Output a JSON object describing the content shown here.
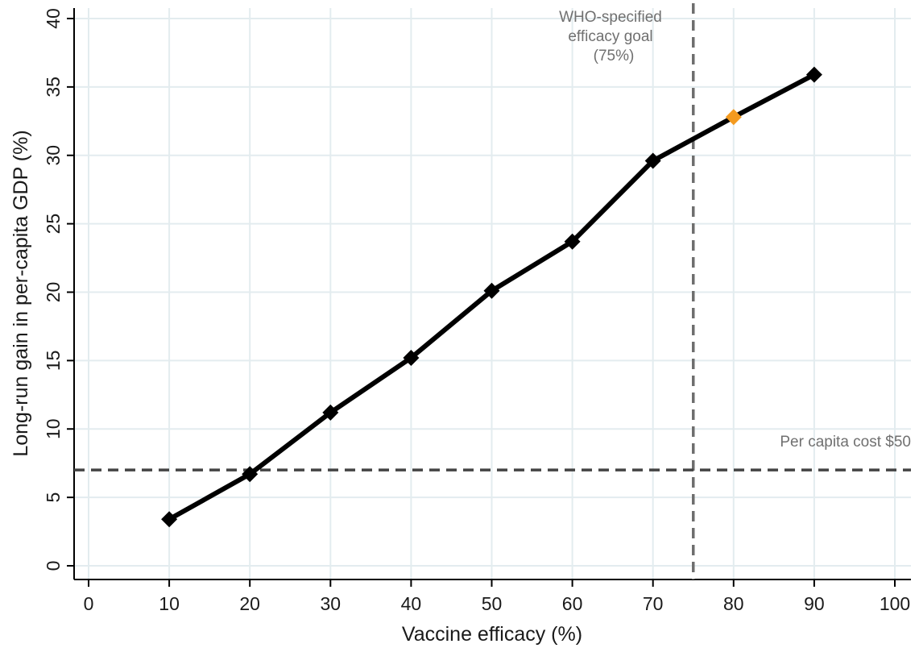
{
  "chart_data": {
    "type": "line",
    "xlabel": "Vaccine efficacy (%)",
    "ylabel": "Long-run gain in per-capita GDP (%)",
    "xlim": [
      0,
      100
    ],
    "ylim": [
      0,
      40
    ],
    "xticks": [
      0,
      10,
      20,
      30,
      40,
      50,
      60,
      70,
      80,
      90,
      100
    ],
    "yticks": [
      0,
      5,
      10,
      15,
      20,
      25,
      30,
      35,
      40
    ],
    "grid": true,
    "series": [
      {
        "x": [
          10,
          20,
          30,
          40,
          50,
          60,
          70,
          80,
          90
        ],
        "y": [
          3.4,
          6.7,
          11.2,
          15.2,
          20.1,
          23.7,
          29.6,
          32.8,
          35.9
        ],
        "color": "#000000",
        "marker": "diamond",
        "highlight_index": 7,
        "highlight_color": "#f39a1f"
      }
    ],
    "reference_lines": [
      {
        "orientation": "vertical",
        "x": 75,
        "style": "dashed",
        "color": "#6e6e6e",
        "label": "WHO-specified\nefficacy goal\n(75%)"
      },
      {
        "orientation": "horizontal",
        "y": 7,
        "style": "dashed",
        "color": "#444444",
        "label": "Per capita cost $50"
      }
    ]
  }
}
